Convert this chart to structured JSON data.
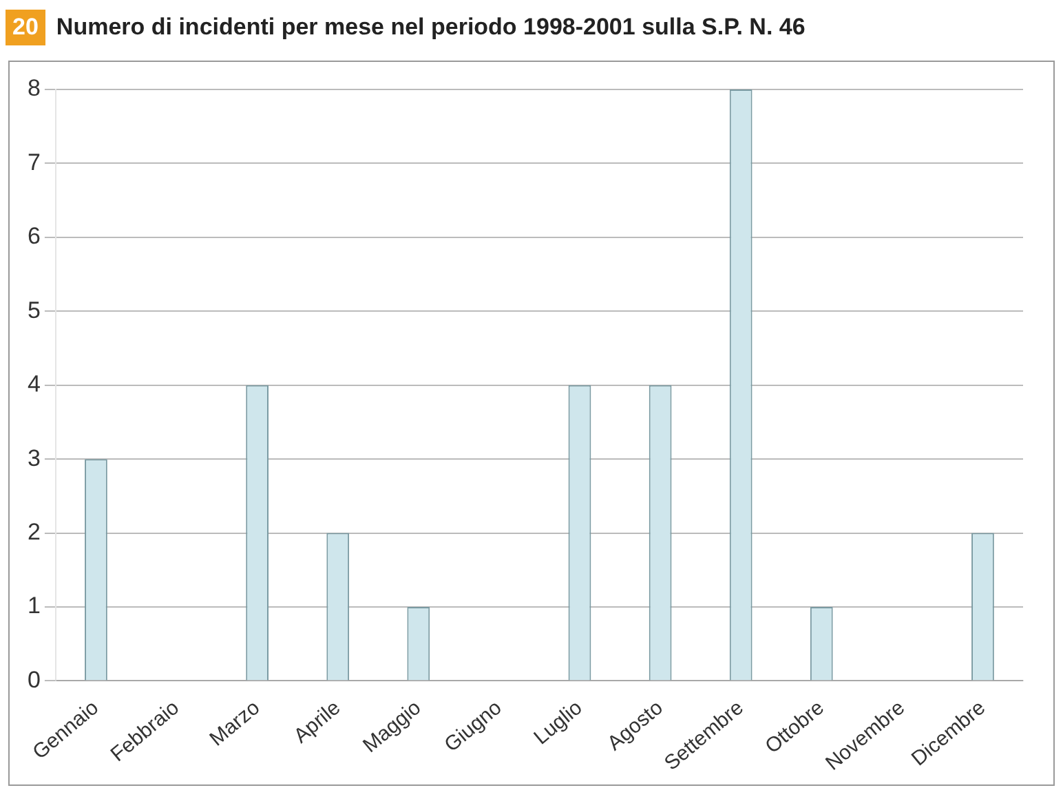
{
  "chart_data": {
    "type": "bar",
    "title": "Numero di incidenti per mese nel periodo 1998-2001 sulla S.P. N. 46",
    "annotations": [
      "20"
    ],
    "categories": [
      "Gennaio",
      "Febbraio",
      "Marzo",
      "Aprile",
      "Maggio",
      "Giugno",
      "Luglio",
      "Agosto",
      "Settembre",
      "Ottobre",
      "Novembre",
      "Dicembre"
    ],
    "values": [
      3,
      0,
      4,
      2,
      1,
      0,
      4,
      4,
      8,
      1,
      0,
      2
    ],
    "color": "#cfe6ec",
    "ylim": [
      0,
      8
    ],
    "yticks": [
      0,
      1,
      2,
      3,
      4,
      5,
      6,
      7,
      8
    ],
    "grid": "y",
    "legend": false
  }
}
